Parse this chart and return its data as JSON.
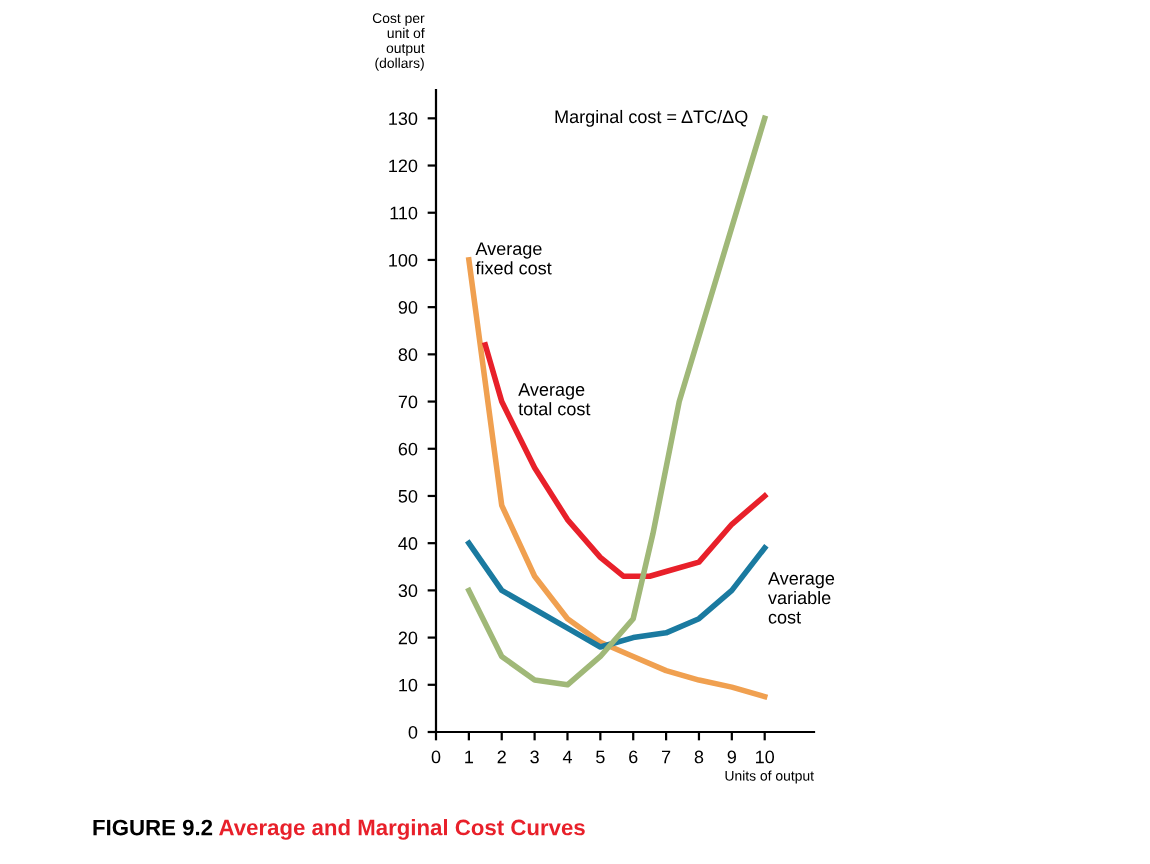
{
  "chart_data": {
    "type": "line",
    "title": "Average and Marginal Cost Curves",
    "ylabel": "Cost per\nunit of\noutput\n(dollars)",
    "xlabel": "Units of output",
    "annotations": [
      "FIGURE 9.2"
    ],
    "series": [
      {
        "name": "Average\nfixed cost",
        "color": "#f0a050",
        "x": [
          1,
          2,
          3,
          4,
          5,
          6,
          7,
          8,
          9,
          10
        ],
        "values": [
          100,
          48,
          33,
          24,
          19,
          16,
          13,
          11,
          9.5,
          7.5
        ]
      },
      {
        "name": "Average\ntotal cost",
        "color": "#e8202a",
        "x": [
          1.5,
          2,
          3,
          4,
          5,
          5.7,
          6.5,
          7,
          8,
          9,
          10
        ],
        "values": [
          82,
          70,
          56,
          45,
          37,
          33,
          33,
          34,
          36,
          44,
          50
        ]
      },
      {
        "name": "Average\nvariable\ncost",
        "color": "#1a7aa0",
        "x": [
          1,
          2,
          3,
          4,
          5,
          6,
          7,
          8,
          9,
          10
        ],
        "values": [
          40,
          30,
          26,
          22,
          18,
          20,
          21,
          24,
          30,
          39
        ]
      },
      {
        "name": "Marginal cost = ΔTC/ΔQ",
        "color": "#a0b878",
        "x": [
          1,
          2,
          3,
          4,
          5,
          6,
          6.6,
          7.4,
          10
        ],
        "values": [
          30,
          16,
          11,
          10,
          16,
          24,
          42,
          70,
          130
        ]
      }
    ],
    "xlim": [
      0,
      11.5
    ],
    "ylim": [
      0,
      136
    ],
    "xticks": [
      0,
      1,
      2,
      3,
      4,
      5,
      6,
      7,
      8,
      9,
      10
    ],
    "yticks": [
      0,
      10,
      20,
      30,
      40,
      50,
      60,
      70,
      80,
      90,
      100,
      110,
      120,
      130
    ],
    "grid": false,
    "legend": false,
    "marker": "none",
    "line_style": "solid"
  }
}
